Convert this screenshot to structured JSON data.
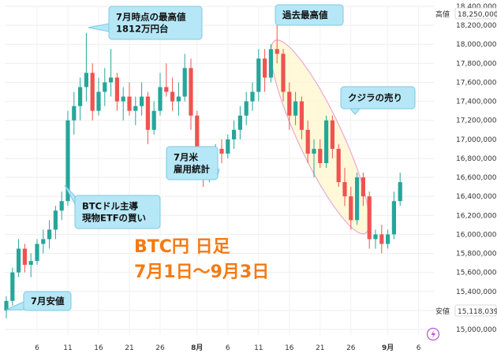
{
  "chart_data": {
    "type": "candlestick",
    "title": "BTC円 日足",
    "subtitle": "7月1日〜9月3日",
    "ylim": [
      15000000,
      18400000
    ],
    "y_ticks": [
      "18,400,000",
      "18,200,000",
      "18,000,000",
      "17,800,000",
      "17,600,000",
      "17,400,000",
      "17,200,000",
      "17,000,000",
      "16,800,000",
      "16,600,000",
      "16,400,000",
      "16,200,000",
      "16,000,000",
      "15,800,000",
      "15,600,000",
      "15,400,000",
      "15,200,000",
      "15,000,000"
    ],
    "x_ticks": [
      {
        "label": "6",
        "t": 5,
        "bold": false
      },
      {
        "label": "11",
        "t": 10,
        "bold": false
      },
      {
        "label": "16",
        "t": 15,
        "bold": false
      },
      {
        "label": "21",
        "t": 20,
        "bold": false
      },
      {
        "label": "26",
        "t": 25,
        "bold": false
      },
      {
        "label": "8月",
        "t": 31,
        "bold": true
      },
      {
        "label": "6",
        "t": 36,
        "bold": false
      },
      {
        "label": "11",
        "t": 41,
        "bold": false
      },
      {
        "label": "16",
        "t": 46,
        "bold": false
      },
      {
        "label": "21",
        "t": 51,
        "bold": false
      },
      {
        "label": "26",
        "t": 56,
        "bold": false
      },
      {
        "label": "9月",
        "t": 62,
        "bold": true
      },
      {
        "label": "6",
        "t": 67,
        "bold": false
      }
    ],
    "high_tag": {
      "label": "高値",
      "value": "18,250,000"
    },
    "low_tag": {
      "label": "安値",
      "value": "15,118,039"
    },
    "candles": [
      [
        0,
        15200000,
        15350000,
        15118039,
        15300000
      ],
      [
        1,
        15300000,
        15650000,
        15250000,
        15600000
      ],
      [
        2,
        15600000,
        15950000,
        15550000,
        15850000
      ],
      [
        3,
        15850000,
        15900000,
        15600000,
        15680000
      ],
      [
        4,
        15680000,
        15800000,
        15550000,
        15720000
      ],
      [
        5,
        15720000,
        15950000,
        15680000,
        15900000
      ],
      [
        6,
        15900000,
        16050000,
        15800000,
        15950000
      ],
      [
        7,
        15950000,
        16150000,
        15850000,
        16050000
      ],
      [
        8,
        16050000,
        16300000,
        15950000,
        16250000
      ],
      [
        9,
        16250000,
        16450000,
        16150000,
        16350000
      ],
      [
        10,
        16350000,
        17300000,
        16300000,
        17200000
      ],
      [
        11,
        17200000,
        17500000,
        17050000,
        17350000
      ],
      [
        12,
        17350000,
        17650000,
        17200000,
        17550000
      ],
      [
        13,
        17550000,
        18120000,
        17400000,
        17700000
      ],
      [
        14,
        17700000,
        17800000,
        17200000,
        17300000
      ],
      [
        15,
        17300000,
        17650000,
        17250000,
        17500000
      ],
      [
        16,
        17500000,
        17750000,
        17350000,
        17600000
      ],
      [
        17,
        17600000,
        17950000,
        17450000,
        17650000
      ],
      [
        18,
        17650000,
        17700000,
        17300000,
        17400000
      ],
      [
        19,
        17400000,
        17550000,
        17200000,
        17450000
      ],
      [
        20,
        17450000,
        17600000,
        17250000,
        17300000
      ],
      [
        21,
        17300000,
        17450000,
        17150000,
        17350000
      ],
      [
        22,
        17350000,
        17600000,
        17250000,
        17450000
      ],
      [
        23,
        17450000,
        17500000,
        16950000,
        17100000
      ],
      [
        24,
        17100000,
        17400000,
        17050000,
        17300000
      ],
      [
        25,
        17300000,
        17700000,
        17250000,
        17550000
      ],
      [
        26,
        17550000,
        17800000,
        17450000,
        17500000
      ],
      [
        27,
        17500000,
        17650000,
        17300000,
        17400000
      ],
      [
        28,
        17400000,
        17600000,
        17250000,
        17450000
      ],
      [
        29,
        17450000,
        17900000,
        17400000,
        17750000
      ],
      [
        30,
        17750000,
        17850000,
        17100000,
        17250000
      ],
      [
        31,
        17250000,
        17300000,
        16600000,
        16700000
      ],
      [
        32,
        16700000,
        16900000,
        16500000,
        16600000
      ],
      [
        33,
        16600000,
        16850000,
        16550000,
        16800000
      ],
      [
        34,
        16800000,
        16950000,
        16700000,
        16900000
      ],
      [
        35,
        16900000,
        17000000,
        16750000,
        16850000
      ],
      [
        36,
        16850000,
        17050000,
        16800000,
        17000000
      ],
      [
        37,
        17000000,
        17200000,
        16900000,
        17100000
      ],
      [
        38,
        17100000,
        17350000,
        17000000,
        17250000
      ],
      [
        39,
        17250000,
        17500000,
        17150000,
        17400000
      ],
      [
        40,
        17400000,
        17600000,
        17300000,
        17500000
      ],
      [
        41,
        17500000,
        17950000,
        17400000,
        17850000
      ],
      [
        42,
        17850000,
        17950000,
        17500000,
        17650000
      ],
      [
        43,
        17650000,
        18000000,
        17600000,
        17950000
      ],
      [
        44,
        17950000,
        18250000,
        17800000,
        17900000
      ],
      [
        45,
        17900000,
        17950000,
        17400000,
        17500000
      ],
      [
        46,
        17500000,
        17600000,
        17100000,
        17250000
      ],
      [
        47,
        17250000,
        17500000,
        17150000,
        17400000
      ],
      [
        48,
        17400000,
        17450000,
        17000000,
        17100000
      ],
      [
        49,
        17100000,
        17200000,
        16750000,
        16850000
      ],
      [
        50,
        16850000,
        17000000,
        16600000,
        16900000
      ],
      [
        51,
        16900000,
        17000000,
        16700000,
        16750000
      ],
      [
        52,
        16750000,
        17250000,
        16700000,
        17200000
      ],
      [
        53,
        17200000,
        17250000,
        16800000,
        16900000
      ],
      [
        54,
        16900000,
        16950000,
        16500000,
        16550000
      ],
      [
        55,
        16550000,
        16700000,
        16300000,
        16400000
      ],
      [
        56,
        16400000,
        16500000,
        16050000,
        16150000
      ],
      [
        57,
        16150000,
        16650000,
        16100000,
        16600000
      ],
      [
        58,
        16600000,
        16650000,
        16300000,
        16400000
      ],
      [
        59,
        16400000,
        16450000,
        15850000,
        15950000
      ],
      [
        60,
        15950000,
        16050000,
        15850000,
        16000000
      ],
      [
        61,
        16000000,
        16100000,
        15800000,
        15900000
      ],
      [
        62,
        15900000,
        16050000,
        15850000,
        16000000
      ],
      [
        63,
        16000000,
        16450000,
        15950000,
        16350000
      ],
      [
        64,
        16350000,
        16650000,
        16300000,
        16550000
      ]
    ],
    "annotations": [
      {
        "id": "jul-low",
        "lines": [
          "7月安値"
        ]
      },
      {
        "id": "jul-high",
        "lines": [
          "7月時点の最高値",
          "1812万円台"
        ]
      },
      {
        "id": "etf",
        "lines": [
          "BTCドル主導",
          "現物ETFの買い"
        ]
      },
      {
        "id": "jobs",
        "lines": [
          "7月米",
          "雇用統計"
        ]
      },
      {
        "id": "ath",
        "lines": [
          "過去最高値"
        ]
      },
      {
        "id": "whale",
        "lines": [
          "クジラの売り"
        ]
      }
    ],
    "up_color": "#26a69a",
    "down_color": "#ef5350",
    "callout_color": "#b6e7f7",
    "title_color": "#f47a14",
    "ellipse_fill": "#fff6cc",
    "ellipse_stroke": "#e7a8d8",
    "grid": true
  }
}
